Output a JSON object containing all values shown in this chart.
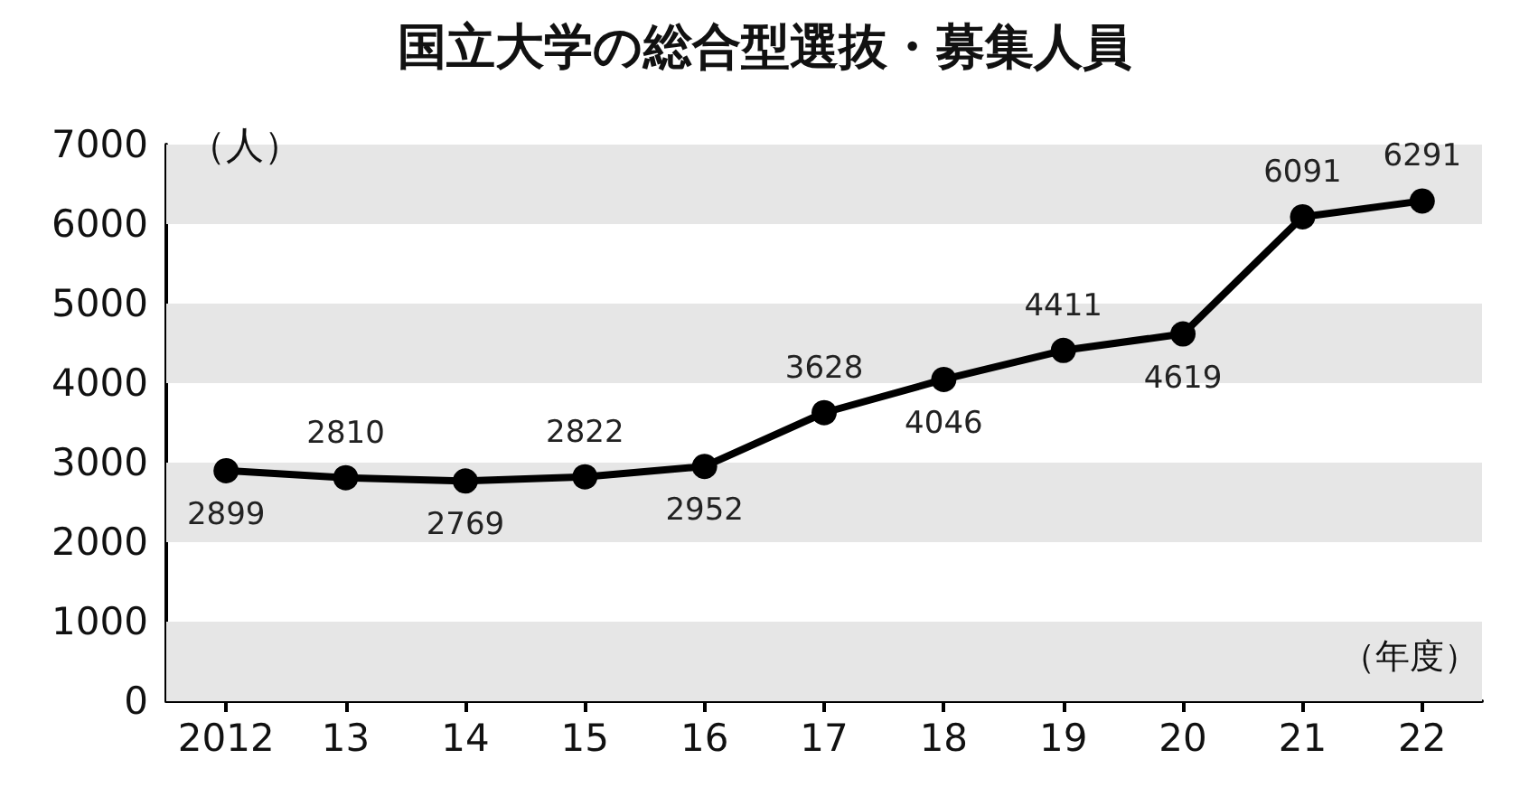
{
  "chart_data": {
    "type": "line",
    "title": "国立大学の総合型選抜・募集人員",
    "ylabel": "（人）",
    "xlabel": "（年度）",
    "categories": [
      "2012",
      "13",
      "14",
      "15",
      "16",
      "17",
      "18",
      "19",
      "20",
      "21",
      "22"
    ],
    "series": [
      {
        "color": "#000000",
        "values": [
          2899,
          2810,
          2769,
          2822,
          2952,
          3628,
          4046,
          4411,
          4619,
          6091,
          6291
        ]
      }
    ],
    "ylim": [
      0,
      7000
    ],
    "yticks": [
      0,
      1000,
      2000,
      3000,
      4000,
      5000,
      6000,
      7000
    ],
    "bands": [
      {
        "axis": "y",
        "from": 0,
        "to": 1000,
        "color": "#e6e6e6"
      },
      {
        "axis": "y",
        "from": 2000,
        "to": 3000,
        "color": "#e6e6e6"
      },
      {
        "axis": "y",
        "from": 4000,
        "to": 5000,
        "color": "#e6e6e6"
      },
      {
        "axis": "y",
        "from": 6000,
        "to": 7000,
        "color": "#e6e6e6"
      }
    ],
    "marker": "circle",
    "line_style": "solid",
    "data_labels": true
  }
}
